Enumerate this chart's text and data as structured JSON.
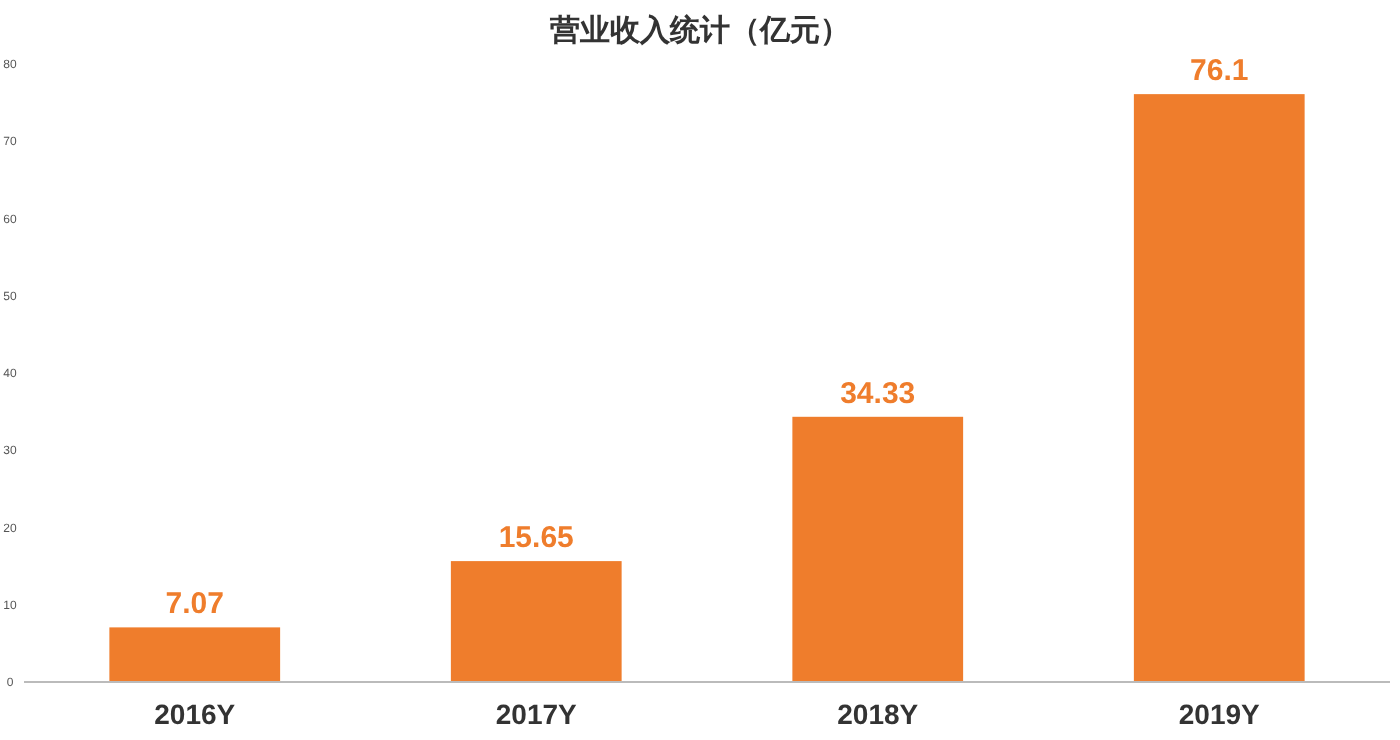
{
  "chart_data": {
    "type": "bar",
    "title": "营业收入统计（亿元）",
    "categories": [
      "2016Y",
      "2017Y",
      "2018Y",
      "2019Y"
    ],
    "values": [
      7.07,
      15.65,
      34.33,
      76.1
    ],
    "color": "#ef7d2c",
    "data_labels": true,
    "ylim": [
      0,
      80
    ],
    "yticks": [
      0,
      10,
      20,
      30,
      40,
      50,
      60,
      70,
      80
    ],
    "grid": false
  }
}
